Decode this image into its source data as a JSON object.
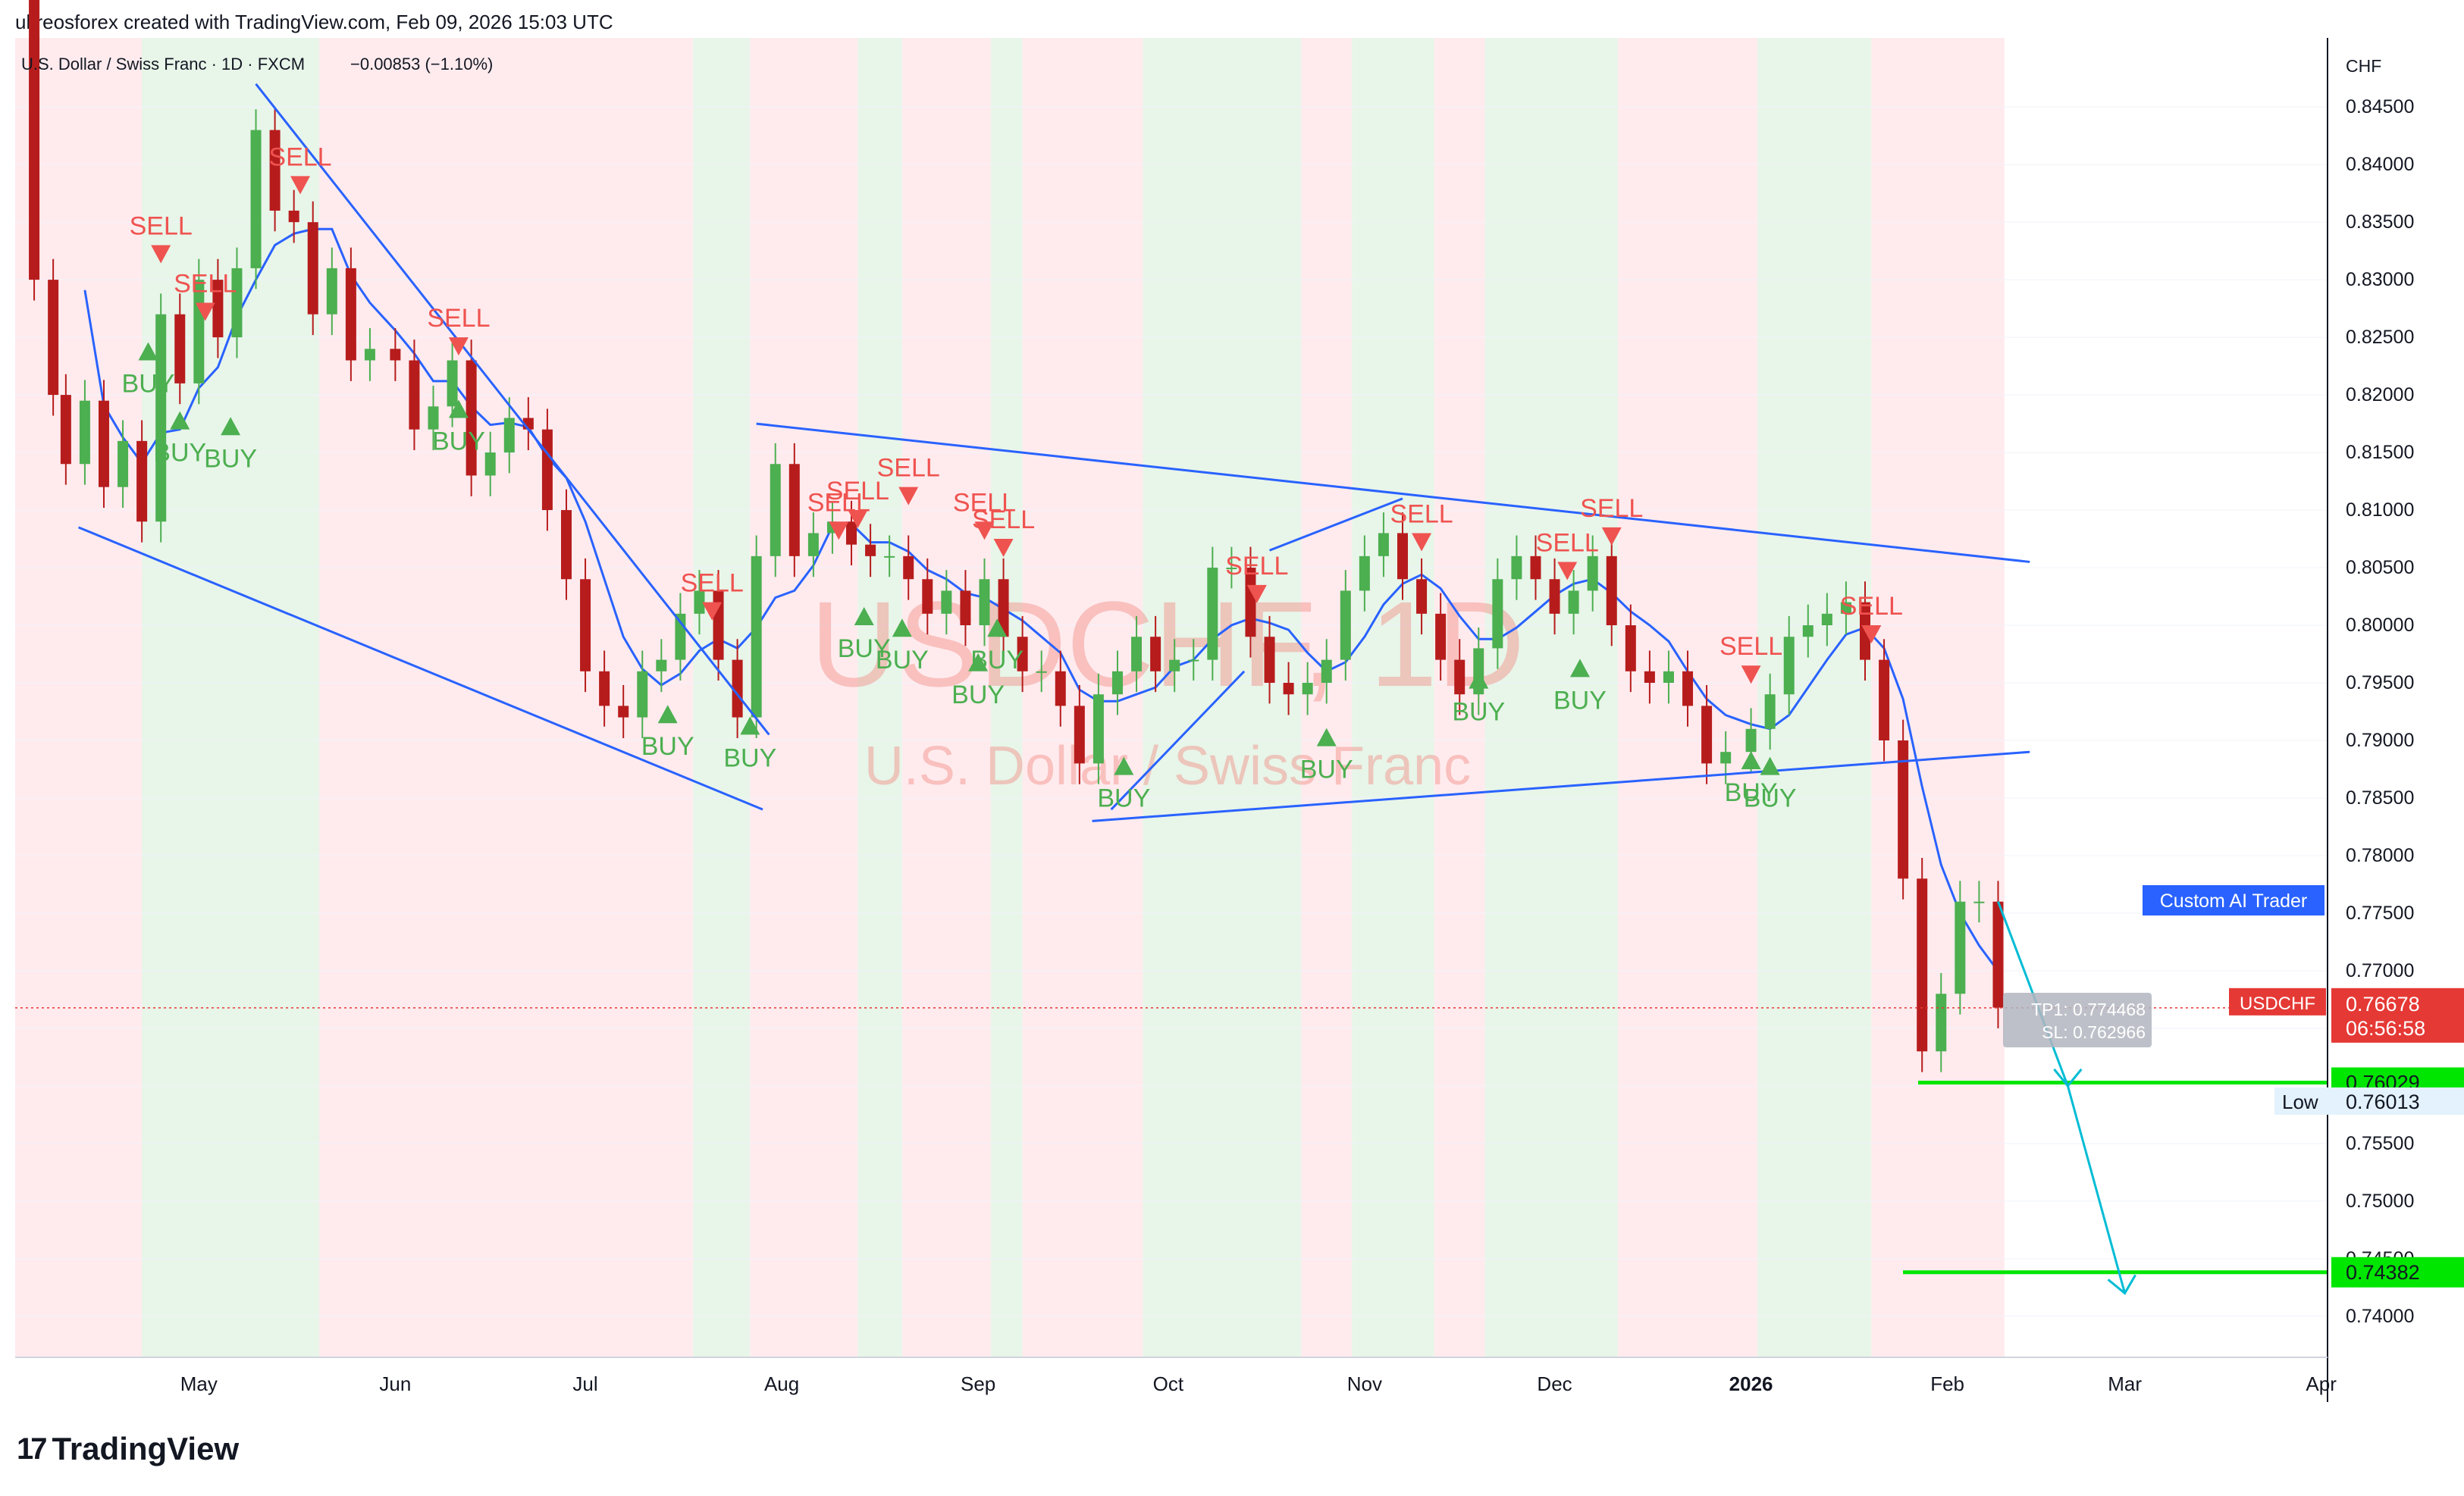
{
  "header": {
    "credit": "ultreosforex created with TradingView.com, Feb 09, 2026 15:03 UTC"
  },
  "symbol": {
    "description": "U.S. Dollar / Swiss Franc · 1D · FXCM",
    "change": "−0.00853 (−1.10%)",
    "watermark_ticker": "USDCHF, 1D",
    "watermark_name": "U.S. Dollar / Swiss Franc"
  },
  "footer": {
    "brand": "TradingView"
  },
  "colors": {
    "up": "#26a69a",
    "buy_arrow": "#4caf50",
    "down": "#b71c1c",
    "sell_arrow": "#ef5350",
    "trendline": "#2962ff",
    "green_bg": "#e8f5e9",
    "red_bg": "#ffebee",
    "target": "#00e600",
    "projection": "#00bcd4"
  },
  "chart_data": {
    "type": "candlestick",
    "currency": "CHF",
    "ylim": [
      0.7365,
      0.851
    ],
    "y_ticks": [
      "0.84500",
      "0.84000",
      "0.83500",
      "0.83000",
      "0.82500",
      "0.82000",
      "0.81500",
      "0.81000",
      "0.80500",
      "0.80000",
      "0.79500",
      "0.79000",
      "0.78500",
      "0.78000",
      "0.77500",
      "0.77000",
      "0.76500",
      "0.76000",
      "0.75500",
      "0.75000",
      "0.74500",
      "0.74000"
    ],
    "y_tick_values": [
      0.845,
      0.84,
      0.835,
      0.83,
      0.825,
      0.82,
      0.815,
      0.81,
      0.805,
      0.8,
      0.795,
      0.79,
      0.785,
      0.78,
      0.775,
      0.77,
      0.765,
      0.76,
      0.755,
      0.75,
      0.745,
      0.74
    ],
    "x_ticks": [
      {
        "label": "May",
        "date": "2025-05-01"
      },
      {
        "label": "Jun",
        "date": "2025-06-01"
      },
      {
        "label": "Jul",
        "date": "2025-07-01"
      },
      {
        "label": "Aug",
        "date": "2025-08-01"
      },
      {
        "label": "Sep",
        "date": "2025-09-01"
      },
      {
        "label": "Oct",
        "date": "2025-10-01"
      },
      {
        "label": "Nov",
        "date": "2025-11-01"
      },
      {
        "label": "Dec",
        "date": "2025-12-01"
      },
      {
        "label": "2026",
        "date": "2026-01-01",
        "bold": true
      },
      {
        "label": "Feb",
        "date": "2026-02-01"
      },
      {
        "label": "Mar",
        "date": "2026-03-01"
      },
      {
        "label": "Apr",
        "date": "2026-04-01"
      }
    ],
    "x_range": [
      "2025-04-02",
      "2026-04-02"
    ],
    "series_close": [
      [
        "2025-04-02",
        0.862
      ],
      [
        "2025-04-05",
        0.83
      ],
      [
        "2025-04-08",
        0.82
      ],
      [
        "2025-04-10",
        0.814
      ],
      [
        "2025-04-13",
        0.8195
      ],
      [
        "2025-04-16",
        0.812
      ],
      [
        "2025-04-19",
        0.816
      ],
      [
        "2025-04-22",
        0.809
      ],
      [
        "2025-04-25",
        0.827
      ],
      [
        "2025-04-28",
        0.821
      ],
      [
        "2025-05-01",
        0.83
      ],
      [
        "2025-05-04",
        0.825
      ],
      [
        "2025-05-07",
        0.831
      ],
      [
        "2025-05-10",
        0.843
      ],
      [
        "2025-05-13",
        0.836
      ],
      [
        "2025-05-16",
        0.835
      ],
      [
        "2025-05-19",
        0.827
      ],
      [
        "2025-05-22",
        0.831
      ],
      [
        "2025-05-25",
        0.823
      ],
      [
        "2025-05-28",
        0.824
      ],
      [
        "2025-06-01",
        0.823
      ],
      [
        "2025-06-04",
        0.817
      ],
      [
        "2025-06-07",
        0.819
      ],
      [
        "2025-06-10",
        0.823
      ],
      [
        "2025-06-13",
        0.813
      ],
      [
        "2025-06-16",
        0.815
      ],
      [
        "2025-06-19",
        0.818
      ],
      [
        "2025-06-22",
        0.817
      ],
      [
        "2025-06-25",
        0.81
      ],
      [
        "2025-06-28",
        0.804
      ],
      [
        "2025-07-01",
        0.796
      ],
      [
        "2025-07-04",
        0.793
      ],
      [
        "2025-07-07",
        0.792
      ],
      [
        "2025-07-10",
        0.796
      ],
      [
        "2025-07-13",
        0.797
      ],
      [
        "2025-07-16",
        0.801
      ],
      [
        "2025-07-19",
        0.803
      ],
      [
        "2025-07-22",
        0.797
      ],
      [
        "2025-07-25",
        0.792
      ],
      [
        "2025-07-28",
        0.806
      ],
      [
        "2025-07-31",
        0.814
      ],
      [
        "2025-08-03",
        0.806
      ],
      [
        "2025-08-06",
        0.808
      ],
      [
        "2025-08-09",
        0.809
      ],
      [
        "2025-08-12",
        0.807
      ],
      [
        "2025-08-15",
        0.806
      ],
      [
        "2025-08-18",
        0.806
      ],
      [
        "2025-08-21",
        0.804
      ],
      [
        "2025-08-24",
        0.801
      ],
      [
        "2025-08-27",
        0.803
      ],
      [
        "2025-08-30",
        0.8
      ],
      [
        "2025-09-02",
        0.804
      ],
      [
        "2025-09-05",
        0.799
      ],
      [
        "2025-09-08",
        0.796
      ],
      [
        "2025-09-11",
        0.796
      ],
      [
        "2025-09-14",
        0.793
      ],
      [
        "2025-09-17",
        0.788
      ],
      [
        "2025-09-20",
        0.794
      ],
      [
        "2025-09-23",
        0.796
      ],
      [
        "2025-09-26",
        0.799
      ],
      [
        "2025-09-29",
        0.796
      ],
      [
        "2025-10-02",
        0.797
      ],
      [
        "2025-10-05",
        0.797
      ],
      [
        "2025-10-08",
        0.805
      ],
      [
        "2025-10-11",
        0.805
      ],
      [
        "2025-10-14",
        0.799
      ],
      [
        "2025-10-17",
        0.795
      ],
      [
        "2025-10-20",
        0.794
      ],
      [
        "2025-10-23",
        0.795
      ],
      [
        "2025-10-26",
        0.797
      ],
      [
        "2025-10-29",
        0.803
      ],
      [
        "2025-11-01",
        0.806
      ],
      [
        "2025-11-04",
        0.808
      ],
      [
        "2025-11-07",
        0.804
      ],
      [
        "2025-11-10",
        0.801
      ],
      [
        "2025-11-13",
        0.797
      ],
      [
        "2025-11-16",
        0.794
      ],
      [
        "2025-11-19",
        0.798
      ],
      [
        "2025-11-22",
        0.804
      ],
      [
        "2025-11-25",
        0.806
      ],
      [
        "2025-11-28",
        0.804
      ],
      [
        "2025-12-01",
        0.801
      ],
      [
        "2025-12-04",
        0.803
      ],
      [
        "2025-12-07",
        0.806
      ],
      [
        "2025-12-10",
        0.8
      ],
      [
        "2025-12-13",
        0.796
      ],
      [
        "2025-12-16",
        0.795
      ],
      [
        "2025-12-19",
        0.796
      ],
      [
        "2025-12-22",
        0.793
      ],
      [
        "2025-12-25",
        0.788
      ],
      [
        "2025-12-28",
        0.789
      ],
      [
        "2026-01-01",
        0.791
      ],
      [
        "2026-01-04",
        0.794
      ],
      [
        "2026-01-07",
        0.799
      ],
      [
        "2026-01-10",
        0.8
      ],
      [
        "2026-01-13",
        0.801
      ],
      [
        "2026-01-16",
        0.802
      ],
      [
        "2026-01-19",
        0.797
      ],
      [
        "2026-01-22",
        0.79
      ],
      [
        "2026-01-25",
        0.778
      ],
      [
        "2026-01-28",
        0.763
      ],
      [
        "2026-01-31",
        0.768
      ],
      [
        "2026-02-03",
        0.776
      ],
      [
        "2026-02-06",
        0.776
      ],
      [
        "2026-02-09",
        0.7668
      ]
    ],
    "current_price": {
      "label": "USDCHF",
      "value": "0.76678",
      "countdown": "06:56:58"
    },
    "low": {
      "label": "Low",
      "value": "0.76013"
    },
    "levels": [
      {
        "value": 0.76029,
        "label": "0.76029"
      },
      {
        "value": 0.74382,
        "label": "0.74382"
      }
    ],
    "indicator_label": "Custom AI Trader",
    "trade_box": {
      "tp": "TP1: 0.774468",
      "sl": "SL: 0.762966"
    },
    "signals": [
      {
        "type": "SELL",
        "date": "2025-04-25",
        "price": 0.833
      },
      {
        "type": "SELL",
        "date": "2025-05-02",
        "price": 0.828
      },
      {
        "type": "SELL",
        "date": "2025-05-17",
        "price": 0.839
      },
      {
        "type": "SELL",
        "date": "2025-06-11",
        "price": 0.825
      },
      {
        "type": "SELL",
        "date": "2025-07-21",
        "price": 0.802
      },
      {
        "type": "SELL",
        "date": "2025-08-10",
        "price": 0.809
      },
      {
        "type": "SELL",
        "date": "2025-08-13",
        "price": 0.81
      },
      {
        "type": "SELL",
        "date": "2025-08-21",
        "price": 0.812
      },
      {
        "type": "SELL",
        "date": "2025-09-02",
        "price": 0.809
      },
      {
        "type": "SELL",
        "date": "2025-09-05",
        "price": 0.8075
      },
      {
        "type": "SELL",
        "date": "2025-10-15",
        "price": 0.8035
      },
      {
        "type": "SELL",
        "date": "2025-11-10",
        "price": 0.808
      },
      {
        "type": "SELL",
        "date": "2025-12-03",
        "price": 0.8055
      },
      {
        "type": "SELL",
        "date": "2025-12-10",
        "price": 0.8085
      },
      {
        "type": "SELL",
        "date": "2026-01-01",
        "price": 0.7965
      },
      {
        "type": "SELL",
        "date": "2026-01-20",
        "price": 0.8
      },
      {
        "type": "BUY",
        "date": "2025-04-23",
        "price": 0.823
      },
      {
        "type": "BUY",
        "date": "2025-04-28",
        "price": 0.817
      },
      {
        "type": "BUY",
        "date": "2025-05-06",
        "price": 0.8165
      },
      {
        "type": "BUY",
        "date": "2025-06-11",
        "price": 0.818
      },
      {
        "type": "BUY",
        "date": "2025-07-14",
        "price": 0.7915
      },
      {
        "type": "BUY",
        "date": "2025-07-27",
        "price": 0.7905
      },
      {
        "type": "BUY",
        "date": "2025-08-14",
        "price": 0.8
      },
      {
        "type": "BUY",
        "date": "2025-08-20",
        "price": 0.799
      },
      {
        "type": "BUY",
        "date": "2025-09-01",
        "price": 0.796
      },
      {
        "type": "BUY",
        "date": "2025-09-04",
        "price": 0.799
      },
      {
        "type": "BUY",
        "date": "2025-09-24",
        "price": 0.787
      },
      {
        "type": "BUY",
        "date": "2025-10-26",
        "price": 0.7895
      },
      {
        "type": "BUY",
        "date": "2025-11-19",
        "price": 0.7945
      },
      {
        "type": "BUY",
        "date": "2025-12-05",
        "price": 0.7955
      },
      {
        "type": "BUY",
        "date": "2026-01-01",
        "price": 0.7875
      },
      {
        "type": "BUY",
        "date": "2026-01-04",
        "price": 0.787
      }
    ],
    "trendlines": [
      [
        [
          "2025-04-12",
          0.8085
        ],
        [
          "2025-07-29",
          0.784
        ]
      ],
      [
        [
          "2025-05-10",
          0.847
        ],
        [
          "2025-07-30",
          0.7905
        ]
      ],
      [
        [
          "2025-07-28",
          0.8175
        ],
        [
          "2026-02-14",
          0.8055
        ]
      ],
      [
        [
          "2025-09-19",
          0.783
        ],
        [
          "2026-02-14",
          0.789
        ]
      ],
      [
        [
          "2025-09-22",
          0.784
        ],
        [
          "2025-10-13",
          0.796
        ]
      ],
      [
        [
          "2025-10-17",
          0.8065
        ],
        [
          "2025-11-07",
          0.811
        ]
      ]
    ],
    "projection": [
      [
        "2026-02-09",
        0.776
      ],
      [
        "2026-02-20",
        0.76
      ],
      [
        "2026-03-01",
        0.742
      ]
    ],
    "regimes": [
      {
        "color": "red",
        "from": "2025-04-02",
        "to": "2025-04-22"
      },
      {
        "color": "green",
        "from": "2025-04-22",
        "to": "2025-05-20"
      },
      {
        "color": "red",
        "from": "2025-05-20",
        "to": "2025-07-18"
      },
      {
        "color": "green",
        "from": "2025-07-18",
        "to": "2025-07-27"
      },
      {
        "color": "red",
        "from": "2025-07-27",
        "to": "2025-08-13"
      },
      {
        "color": "green",
        "from": "2025-08-13",
        "to": "2025-08-20"
      },
      {
        "color": "red",
        "from": "2025-08-20",
        "to": "2025-09-03"
      },
      {
        "color": "green",
        "from": "2025-09-03",
        "to": "2025-09-08"
      },
      {
        "color": "red",
        "from": "2025-09-08",
        "to": "2025-09-27"
      },
      {
        "color": "green",
        "from": "2025-09-27",
        "to": "2025-10-22"
      },
      {
        "color": "red",
        "from": "2025-10-22",
        "to": "2025-10-30"
      },
      {
        "color": "green",
        "from": "2025-10-30",
        "to": "2025-11-12"
      },
      {
        "color": "red",
        "from": "2025-11-12",
        "to": "2025-11-20"
      },
      {
        "color": "green",
        "from": "2025-11-20",
        "to": "2025-12-11"
      },
      {
        "color": "red",
        "from": "2025-12-11",
        "to": "2026-01-02"
      },
      {
        "color": "green",
        "from": "2026-01-02",
        "to": "2026-01-20"
      },
      {
        "color": "red",
        "from": "2026-01-20",
        "to": "2026-02-10"
      }
    ]
  }
}
